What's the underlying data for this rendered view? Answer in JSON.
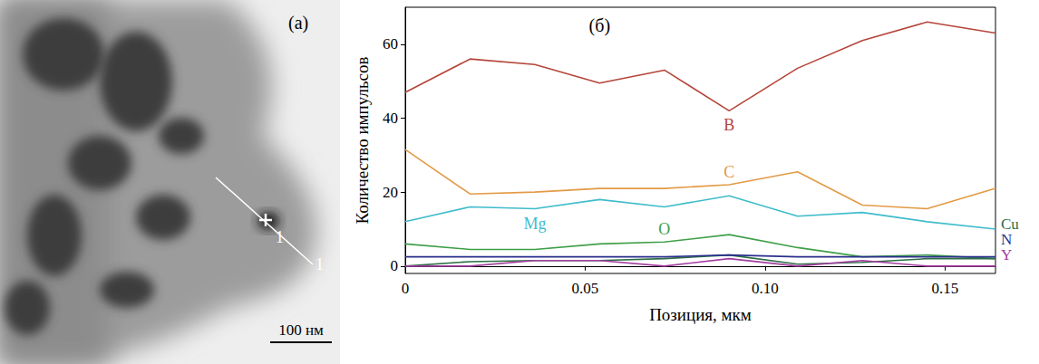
{
  "image_panel": {
    "label": "(а)",
    "scale_bar": "100 нм",
    "line_labels": [
      "1",
      "1"
    ]
  },
  "chart_data": {
    "type": "line",
    "title": "(б)",
    "x_label": "Позиция, мкм",
    "y_label": "Количество импульсов",
    "x": [
      0,
      0.018,
      0.036,
      0.054,
      0.072,
      0.09,
      0.109,
      0.127,
      0.145,
      0.164
    ],
    "series": [
      {
        "name": "B",
        "color": "#b5453a",
        "values": [
          47,
          56,
          54.5,
          49.5,
          53,
          42,
          53.5,
          61,
          66,
          63
        ]
      },
      {
        "name": "C",
        "color": "#e39a45",
        "values": [
          31.5,
          19.5,
          20,
          21,
          21,
          22,
          25.5,
          16.5,
          15.5,
          21
        ]
      },
      {
        "name": "Mg",
        "color": "#3fbccb",
        "values": [
          12,
          16,
          15.5,
          18,
          16,
          19,
          13.5,
          14.5,
          12,
          10
        ]
      },
      {
        "name": "O",
        "color": "#3f9f48",
        "values": [
          6,
          4.5,
          4.5,
          6,
          6.5,
          8.5,
          5,
          2.5,
          3,
          2
        ]
      },
      {
        "name": "Cu",
        "color": "#2d6e45",
        "values": [
          0,
          1.2,
          1.5,
          1.5,
          2,
          3,
          0.5,
          1,
          2,
          2
        ]
      },
      {
        "name": "N",
        "color": "#2b2f8c",
        "values": [
          2.5,
          2.5,
          2.5,
          2.5,
          2.5,
          3,
          2.5,
          2.5,
          2.5,
          2.5
        ]
      },
      {
        "name": "Y",
        "color": "#a33ea0",
        "values": [
          0,
          0,
          1.5,
          1.5,
          0,
          2,
          0,
          1.5,
          0,
          0
        ]
      }
    ],
    "xlim": [
      0,
      0.164
    ],
    "xticks": [
      0,
      0.05,
      {
        "value": 0.1,
        "label": "0.10"
      },
      0.15
    ],
    "ylim": [
      -2,
      70
    ],
    "yticks": [
      0,
      20,
      40,
      60
    ],
    "grid": false
  }
}
